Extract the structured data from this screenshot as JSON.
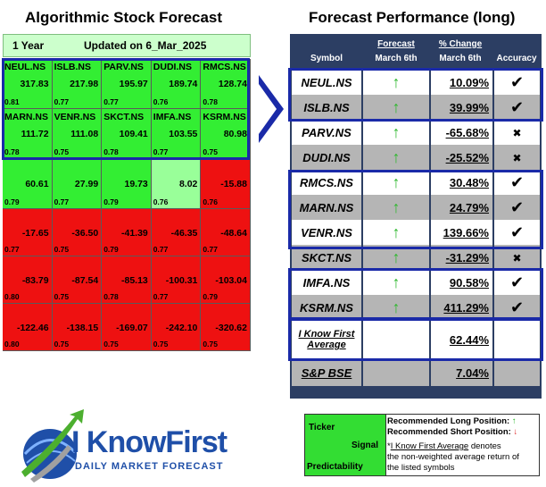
{
  "left_title": "Algorithmic Stock Forecast",
  "right_title": "Forecast Performance (long)",
  "left_header": {
    "period": "1 Year",
    "updated": "Updated on 6_Mar_2025"
  },
  "grid": [
    [
      {
        "t": "NEUL.NS",
        "v": "317.83",
        "p": "0.81",
        "c": "g"
      },
      {
        "t": "ISLB.NS",
        "v": "217.98",
        "p": "0.77",
        "c": "g"
      },
      {
        "t": "PARV.NS",
        "v": "195.97",
        "p": "0.77",
        "c": "g"
      },
      {
        "t": "DUDI.NS",
        "v": "189.74",
        "p": "0.76",
        "c": "g"
      },
      {
        "t": "RMCS.NS",
        "v": "128.74",
        "p": "0.78",
        "c": "g"
      }
    ],
    [
      {
        "t": "MARN.NS",
        "v": "111.72",
        "p": "0.78",
        "c": "g"
      },
      {
        "t": "VENR.NS",
        "v": "111.08",
        "p": "0.75",
        "c": "g"
      },
      {
        "t": "SKCT.NS",
        "v": "109.41",
        "p": "0.78",
        "c": "g"
      },
      {
        "t": "IMFA.NS",
        "v": "103.55",
        "p": "0.77",
        "c": "g"
      },
      {
        "t": "KSRM.NS",
        "v": "80.98",
        "p": "0.75",
        "c": "g"
      }
    ],
    [
      {
        "t": "",
        "v": "60.61",
        "p": "0.79",
        "c": "g"
      },
      {
        "t": "",
        "v": "27.99",
        "p": "0.77",
        "c": "g"
      },
      {
        "t": "",
        "v": "19.73",
        "p": "0.79",
        "c": "g"
      },
      {
        "t": "",
        "v": "8.02",
        "p": "0.76",
        "c": "lg"
      },
      {
        "t": "",
        "v": "-15.88",
        "p": "0.76",
        "c": "r"
      }
    ],
    [
      {
        "t": "",
        "v": "-17.65",
        "p": "0.77",
        "c": "r"
      },
      {
        "t": "",
        "v": "-36.50",
        "p": "0.75",
        "c": "r"
      },
      {
        "t": "",
        "v": "-41.39",
        "p": "0.79",
        "c": "r"
      },
      {
        "t": "",
        "v": "-46.35",
        "p": "0.77",
        "c": "r"
      },
      {
        "t": "",
        "v": "-48.64",
        "p": "0.77",
        "c": "r"
      }
    ],
    [
      {
        "t": "",
        "v": "-83.79",
        "p": "0.80",
        "c": "r"
      },
      {
        "t": "",
        "v": "-87.54",
        "p": "0.75",
        "c": "r"
      },
      {
        "t": "",
        "v": "-85.13",
        "p": "0.78",
        "c": "r"
      },
      {
        "t": "",
        "v": "-100.31",
        "p": "0.77",
        "c": "r"
      },
      {
        "t": "",
        "v": "-103.04",
        "p": "0.79",
        "c": "r"
      }
    ],
    [
      {
        "t": "",
        "v": "-122.46",
        "p": "0.80",
        "c": "r"
      },
      {
        "t": "",
        "v": "-138.15",
        "p": "0.75",
        "c": "r"
      },
      {
        "t": "",
        "v": "-169.07",
        "p": "0.75",
        "c": "r"
      },
      {
        "t": "",
        "v": "-242.10",
        "p": "0.75",
        "c": "r"
      },
      {
        "t": "",
        "v": "-320.62",
        "p": "0.75",
        "c": "r"
      }
    ]
  ],
  "perf_header": {
    "symbol": "Symbol",
    "forecast": "Forecast",
    "forecast_date": "March 6th",
    "change": "% Change",
    "change_date": "March 6th",
    "accuracy": "Accuracy"
  },
  "perf_rows": [
    {
      "sym": "NEUL.NS",
      "pct": "10.09%",
      "acc": "✔",
      "bg": "wbg"
    },
    {
      "sym": "ISLB.NS",
      "pct": "39.99%",
      "acc": "✔",
      "bg": "gbg"
    },
    {
      "sym": "PARV.NS",
      "pct": "-65.68%",
      "acc": "✖",
      "bg": "wbg"
    },
    {
      "sym": "DUDI.NS",
      "pct": "-25.52%",
      "acc": "✖",
      "bg": "gbg"
    },
    {
      "sym": "RMCS.NS",
      "pct": "30.48%",
      "acc": "✔",
      "bg": "wbg"
    },
    {
      "sym": "MARN.NS",
      "pct": "24.79%",
      "acc": "✔",
      "bg": "gbg"
    },
    {
      "sym": "VENR.NS",
      "pct": "139.66%",
      "acc": "✔",
      "bg": "wbg"
    },
    {
      "sym": "SKCT.NS",
      "pct": "-31.29%",
      "acc": "✖",
      "bg": "gbg"
    },
    {
      "sym": "IMFA.NS",
      "pct": "90.58%",
      "acc": "✔",
      "bg": "wbg"
    },
    {
      "sym": "KSRM.NS",
      "pct": "411.29%",
      "acc": "✔",
      "bg": "gbg"
    }
  ],
  "average": {
    "label1": "I Know First",
    "label2": "Average",
    "pct": "62.44%"
  },
  "bse": {
    "label": "S&P BSE",
    "pct": "7.04%"
  },
  "legend": {
    "ticker": "Ticker",
    "signal": "Signal",
    "predictability": "Predictability",
    "long": "Recommended Long Position:",
    "short": "Recommended Short Position:",
    "note_star": "*",
    "note_link": "I Know First Average",
    "note_rest1": " denotes",
    "note_line2": "the non-weighted average return of",
    "note_line3": "the listed symbols"
  },
  "logo": {
    "brand": "I KnowFirst",
    "tagline": "DAILY MARKET FORECAST"
  },
  "colors": {
    "green": "#33ee33",
    "red": "#ee1111",
    "navy": "#2c3e63",
    "box": "#1a2aa8",
    "arrow_green": "#2db82d"
  }
}
